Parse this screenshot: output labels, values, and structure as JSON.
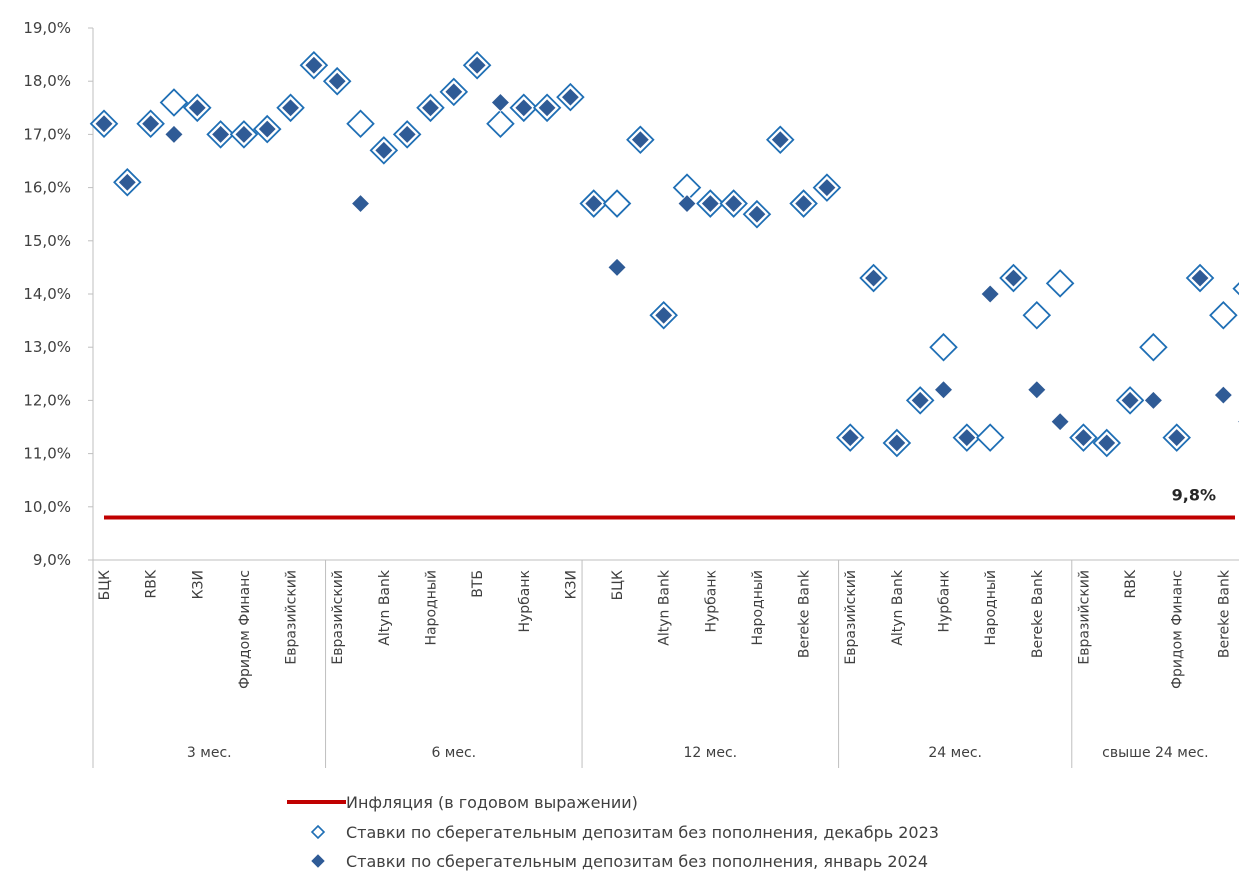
{
  "chart_data": {
    "type": "scatter",
    "ylim": [
      9,
      19
    ],
    "yticks": [
      "9,0%",
      "10,0%",
      "11,0%",
      "12,0%",
      "13,0%",
      "14,0%",
      "15,0%",
      "16,0%",
      "17,0%",
      "18,0%",
      "19,0%"
    ],
    "ytick_values": [
      9,
      10,
      11,
      12,
      13,
      14,
      15,
      16,
      17,
      18,
      19
    ],
    "categories": [
      "БЦК",
      "",
      "RBK",
      "",
      "КЗИ",
      "",
      "Фридом Финанс",
      "",
      "Евразийский",
      "",
      "Евразийский",
      "",
      "Altyn Bank",
      "",
      "Народный",
      "",
      "ВТБ",
      "",
      "Нурбанк",
      "",
      "КЗИ",
      "",
      "БЦК",
      "",
      "Altyn Bank",
      "",
      "Нурбанк",
      "",
      "Народный",
      "",
      "Bereke Bank",
      "",
      "Евразийский",
      "",
      "Altyn Bank",
      "",
      "Нурбанк",
      "",
      "Народный",
      "",
      "Bereke Bank",
      "",
      "Евразийский",
      "",
      "RBK",
      "",
      "Фридом Финанс",
      "",
      "Bereke Bank",
      ""
    ],
    "groups": [
      {
        "label": "3 мес.",
        "start": 0,
        "end": 9
      },
      {
        "label": "6 мес.",
        "start": 10,
        "end": 20
      },
      {
        "label": "12 мес.",
        "start": 21,
        "end": 31
      },
      {
        "label": "24 мес.",
        "start": 32,
        "end": 41
      },
      {
        "label": "свыше 24 мес.",
        "start": 42,
        "end": 49
      }
    ],
    "series": [
      {
        "name": "Ставки по сберегательным депозитам без пополнения, декабрь 2023",
        "marker": "open-diamond",
        "values": [
          17.2,
          16.1,
          17.2,
          17.6,
          17.5,
          17.0,
          17.0,
          17.1,
          17.5,
          18.3,
          18.0,
          17.2,
          16.7,
          17.0,
          17.5,
          17.8,
          18.3,
          17.2,
          17.5,
          17.5,
          17.7,
          15.7,
          15.7,
          16.9,
          13.6,
          16.0,
          15.7,
          15.7,
          15.5,
          16.9,
          15.7,
          16.0,
          11.3,
          14.3,
          11.2,
          12.0,
          13.0,
          11.3,
          11.3,
          14.3,
          13.6,
          14.2,
          11.3,
          11.2,
          12.0,
          13.0,
          11.3,
          14.3,
          13.6,
          14.1
        ]
      },
      {
        "name": "Ставки по сберегательным депозитам без пополнения, январь 2024",
        "marker": "filled-diamond",
        "values": [
          17.2,
          16.1,
          17.2,
          17.0,
          17.5,
          17.0,
          17.0,
          17.1,
          17.5,
          18.3,
          18.0,
          15.7,
          16.7,
          17.0,
          17.5,
          17.8,
          18.3,
          17.6,
          17.5,
          17.5,
          17.7,
          15.7,
          14.5,
          16.9,
          13.6,
          15.7,
          15.7,
          15.7,
          15.5,
          16.9,
          15.7,
          16.0,
          11.3,
          14.3,
          11.2,
          12.0,
          12.2,
          11.3,
          14.0,
          14.3,
          12.2,
          11.6,
          11.3,
          11.2,
          12.0,
          12.0,
          11.3,
          14.3,
          12.1,
          11.6
        ]
      }
    ],
    "reference_line": {
      "name": "Инфляция (в годовом выражении)",
      "value": 9.8,
      "label": "9,8%",
      "color": "#c00000"
    },
    "colors": {
      "marker": "#2f5b96",
      "open_fill": "#ffffff",
      "open_stroke": "#1f6fb5",
      "axis": "#bfbfbf",
      "text": "#404040"
    },
    "legend_position": "bottom"
  }
}
